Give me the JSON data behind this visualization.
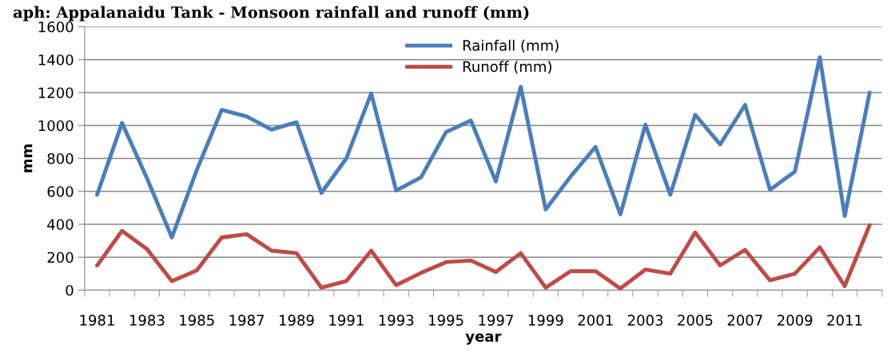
{
  "chart_data": {
    "type": "line",
    "title": "aph: Appalanaidu Tank - Monsoon rainfall and runoff (mm)",
    "xlabel": "year",
    "ylabel": "mm",
    "categories": [
      "1981",
      null,
      "1983",
      null,
      "1985",
      null,
      "1987",
      null,
      "1989",
      null,
      "1991",
      null,
      "1993",
      null,
      "1995",
      null,
      "1997",
      null,
      "1999",
      null,
      "2001",
      null,
      "2003",
      null,
      "2005",
      null,
      "2007",
      null,
      "2009",
      null,
      "2011",
      null
    ],
    "series": [
      {
        "name": "Rainfall (mm)",
        "color": "#4a7ebb",
        "values": [
          580,
          1015,
          680,
          320,
          730,
          1095,
          1055,
          975,
          1020,
          590,
          800,
          1195,
          605,
          685,
          960,
          1030,
          660,
          1235,
          490,
          690,
          870,
          460,
          1005,
          580,
          1065,
          885,
          1125,
          610,
          720,
          1415,
          450,
          1200
        ]
      },
      {
        "name": "Runoff (mm)",
        "color": "#be4b48",
        "values": [
          150,
          360,
          250,
          55,
          120,
          320,
          340,
          240,
          225,
          15,
          55,
          240,
          30,
          105,
          170,
          180,
          110,
          225,
          15,
          115,
          115,
          10,
          125,
          100,
          350,
          150,
          245,
          60,
          100,
          260,
          25,
          395
        ]
      }
    ],
    "ylim": [
      0,
      1600
    ],
    "yticks": [
      0,
      200,
      400,
      600,
      800,
      1000,
      1200,
      1400,
      1600
    ],
    "grid": "y",
    "legend": "top",
    "marker": "none",
    "line_style": "solid"
  }
}
